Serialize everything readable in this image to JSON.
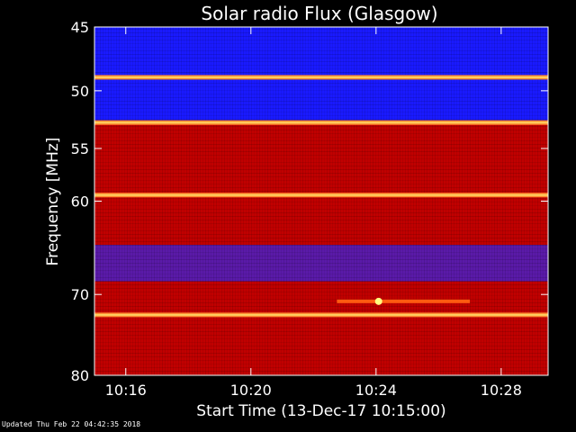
{
  "chart_data": {
    "type": "heatmap",
    "title": "Solar radio Flux (Glasgow)",
    "xlabel": "Start Time (13-Dec-17 10:15:00)",
    "ylabel": "Frequency [MHz]",
    "xlim": [
      "10:15:00",
      "10:29:30"
    ],
    "ylim": [
      45,
      80
    ],
    "y_scale": "log",
    "x_ticks": [
      "10:16",
      "10:20",
      "10:24",
      "10:28"
    ],
    "y_ticks": [
      45,
      50,
      55,
      60,
      70,
      80
    ],
    "bands": [
      {
        "from": 45,
        "to": 48.5,
        "level": "low"
      },
      {
        "from": 48.5,
        "to": 52.5,
        "level": "low"
      },
      {
        "from": 52.5,
        "to": 64.5,
        "level": "high"
      },
      {
        "from": 64.5,
        "to": 68.5,
        "level": "medium"
      },
      {
        "from": 68.5,
        "to": 72.5,
        "level": "high"
      },
      {
        "from": 72.5,
        "to": 80,
        "level": "high"
      }
    ],
    "bright_lines_mhz": [
      48.9,
      52.7,
      59.4,
      72.4
    ],
    "event": {
      "frequency_mhz": 70.8,
      "start": "10:22:45",
      "end": "10:27:00",
      "peak": "10:24:05"
    },
    "colors": {
      "low": "#1a1aff",
      "medium": "#5a1aa8",
      "high": "#c00000",
      "line": "#ffd060"
    }
  },
  "footer": {
    "updated": "Updated Thu Feb 22 04:42:35 2018"
  }
}
